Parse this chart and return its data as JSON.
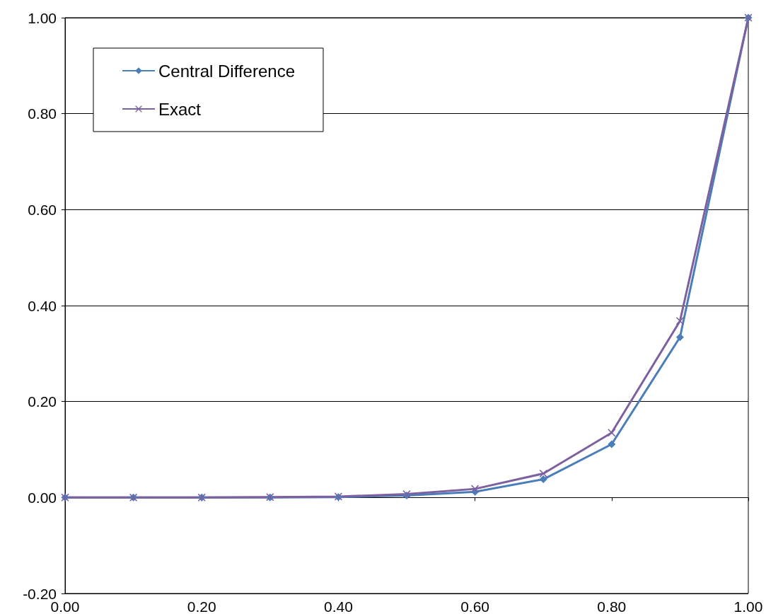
{
  "chart_data": {
    "type": "line",
    "x": [
      0,
      0.1,
      0.2,
      0.3,
      0.4,
      0.5,
      0.6,
      0.7,
      0.8,
      0.9,
      1.0
    ],
    "series": [
      {
        "name": "Central Difference",
        "color": "#4a7ebb",
        "marker": "diamond",
        "values": [
          0,
          0,
          0,
          0,
          0.001,
          0.004,
          0.012,
          0.038,
          0.111,
          0.334,
          1.0
        ]
      },
      {
        "name": "Exact",
        "color": "#7d60a0",
        "marker": "cross",
        "values": [
          0,
          0,
          0,
          0.001,
          0.002,
          0.007,
          0.018,
          0.05,
          0.135,
          0.368,
          1.0
        ]
      }
    ],
    "xlim": [
      0,
      1
    ],
    "xticks": [
      {
        "value": 0,
        "label": "0.00"
      },
      {
        "value": 0.2,
        "label": "0.20"
      },
      {
        "value": 0.4,
        "label": "0.40"
      },
      {
        "value": 0.6,
        "label": "0.60"
      },
      {
        "value": 0.8,
        "label": "0.80"
      },
      {
        "value": 1,
        "label": "1.00"
      }
    ],
    "ylim": [
      -0.2,
      1
    ],
    "yticks": [
      {
        "value": -0.2,
        "label": "-0.20"
      },
      {
        "value": 0,
        "label": "0.00"
      },
      {
        "value": 0.2,
        "label": "0.20"
      },
      {
        "value": 0.4,
        "label": "0.40"
      },
      {
        "value": 0.6,
        "label": "0.60"
      },
      {
        "value": 0.8,
        "label": "0.80"
      },
      {
        "value": 1,
        "label": "1.00"
      }
    ],
    "grid": "y",
    "legend": "top left",
    "line_style": "solid"
  }
}
